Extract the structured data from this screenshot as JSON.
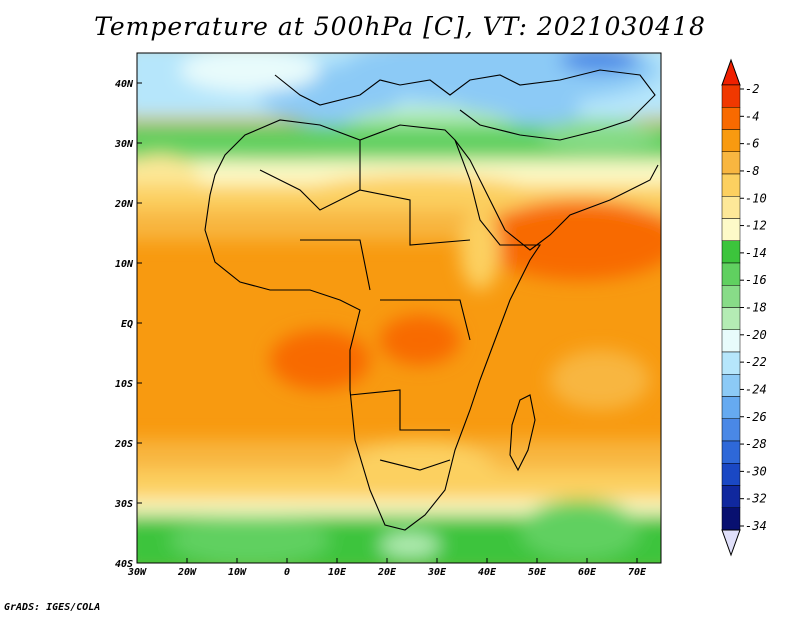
{
  "title": "Temperature at 500hPa [C], VT: 2021030418",
  "footer": "GrADS: IGES/COLA",
  "map": {
    "lon_ticks": [
      "30W",
      "20W",
      "10W",
      "0",
      "10E",
      "20E",
      "30E",
      "40E",
      "50E",
      "60E",
      "70E"
    ],
    "lat_ticks": [
      "40N",
      "30N",
      "20N",
      "10N",
      "EQ",
      "10S",
      "20S",
      "30S",
      "40S"
    ]
  },
  "colorbar": {
    "labels": [
      "-2",
      "-4",
      "-6",
      "-8",
      "-10",
      "-12",
      "-14",
      "-16",
      "-18",
      "-20",
      "-22",
      "-24",
      "-26",
      "-28",
      "-30",
      "-32",
      "-34"
    ],
    "colors": [
      "#f03800",
      "#f86a00",
      "#f89a10",
      "#f8b640",
      "#fcd060",
      "#fde898",
      "#fdfac8",
      "#3cc43c",
      "#60d060",
      "#88dc88",
      "#b4ecb4",
      "#e8fbfb",
      "#b6e6fb",
      "#8ccaf6",
      "#66aaf0",
      "#4a88e6",
      "#2e68d8",
      "#1a48c4",
      "#10289e",
      "#081070"
    ],
    "top_color": "#f02000",
    "bottom_color": "#e0e0fa"
  }
}
